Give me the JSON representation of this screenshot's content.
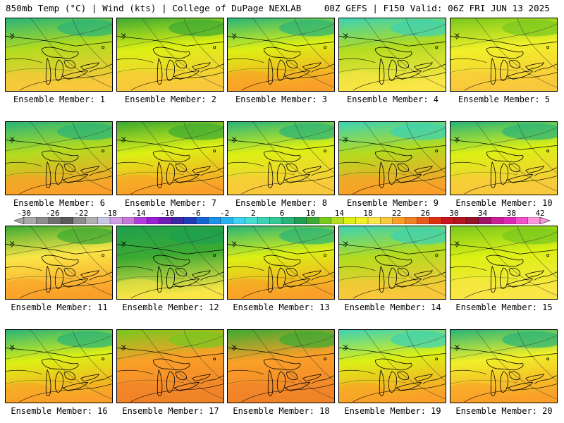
{
  "header": {
    "left": "850mb Temp (°C) | Wind (kts) | College of DuPage NEXLAB",
    "right": "00Z GEFS | F150 Valid: 06Z FRI JUN 13 2025"
  },
  "panels": [
    {
      "label": "Ensemble Member: 1"
    },
    {
      "label": "Ensemble Member: 2"
    },
    {
      "label": "Ensemble Member: 3"
    },
    {
      "label": "Ensemble Member: 4"
    },
    {
      "label": "Ensemble Member: 5"
    },
    {
      "label": "Ensemble Member: 6"
    },
    {
      "label": "Ensemble Member: 7"
    },
    {
      "label": "Ensemble Member: 8"
    },
    {
      "label": "Ensemble Member: 9"
    },
    {
      "label": "Ensemble Member: 10"
    },
    {
      "label": "Ensemble Member: 11"
    },
    {
      "label": "Ensemble Member: 12"
    },
    {
      "label": "Ensemble Member: 13"
    },
    {
      "label": "Ensemble Member: 14"
    },
    {
      "label": "Ensemble Member: 15"
    },
    {
      "label": "Ensemble Member: 16"
    },
    {
      "label": "Ensemble Member: 17"
    },
    {
      "label": "Ensemble Member: 18"
    },
    {
      "label": "Ensemble Member: 19"
    },
    {
      "label": "Ensemble Member: 20"
    }
  ],
  "colorbar": {
    "tick_labels": [
      "-30",
      "-26",
      "-22",
      "-18",
      "-14",
      "-10",
      "-6",
      "-2",
      "2",
      "6",
      "10",
      "14",
      "18",
      "22",
      "26",
      "30",
      "34",
      "38",
      "42"
    ],
    "colors": [
      "#a9a9a9",
      "#8c8c8c",
      "#707070",
      "#5a5a5a",
      "#8c8c8c",
      "#b0b0b0",
      "#c8c8e6",
      "#d2a0e6",
      "#c878dc",
      "#b43cdc",
      "#9b1fd2",
      "#6e1eb4",
      "#3c28a0",
      "#1e3cb4",
      "#1464d2",
      "#1e90e6",
      "#28b4f0",
      "#3cd2f0",
      "#46dcd2",
      "#3cd2b4",
      "#32c896",
      "#28b478",
      "#1ea050",
      "#3caa32",
      "#78c81e",
      "#b4dc1e",
      "#dcf014",
      "#f0f028",
      "#fae646",
      "#fac83c",
      "#faa028",
      "#f08228",
      "#e65a1e",
      "#dc3214",
      "#c8141e",
      "#b4141e",
      "#961428",
      "#a01464",
      "#c81e96",
      "#dc28b4",
      "#f050c8",
      "#fa96dc"
    ]
  }
}
